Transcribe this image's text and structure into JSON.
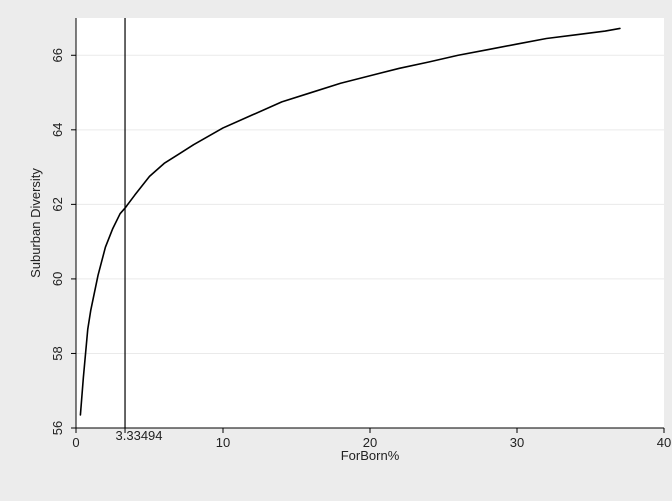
{
  "chart_data": {
    "type": "line",
    "title": "",
    "xlabel": "ForBorn%",
    "ylabel": "Suburban Diversity",
    "xlim": [
      0,
      40
    ],
    "ylim": [
      56,
      67
    ],
    "x_ticks": [
      0,
      10,
      20,
      30,
      40
    ],
    "y_ticks": [
      56,
      58,
      60,
      62,
      64,
      66
    ],
    "grid": "horizontal",
    "legend": "none",
    "line_color": "#000000",
    "background": "#ececec",
    "plot_background": "#ffffff",
    "series": [
      {
        "x": [
          0.3,
          0.5,
          0.8,
          1.0,
          1.5,
          2.0,
          2.5,
          3.0,
          3.33494,
          4.0,
          5.0,
          6.0,
          7.0,
          8.0,
          10.0,
          12.0,
          14.0,
          16.0,
          18.0,
          20.0,
          22.0,
          24.0,
          26.0,
          28.0,
          30.0,
          32.0,
          34.0,
          36.0,
          37.0
        ],
        "y": [
          56.35,
          57.35,
          58.65,
          59.15,
          60.1,
          60.85,
          61.35,
          61.75,
          61.9,
          62.25,
          62.75,
          63.1,
          63.35,
          63.6,
          64.05,
          64.4,
          64.75,
          65.0,
          65.25,
          65.45,
          65.65,
          65.82,
          66.0,
          66.15,
          66.3,
          66.45,
          66.55,
          66.65,
          66.72
        ]
      }
    ],
    "annotations": [
      {
        "type": "vline",
        "x": 3.33494,
        "label": "3.33494"
      }
    ]
  }
}
